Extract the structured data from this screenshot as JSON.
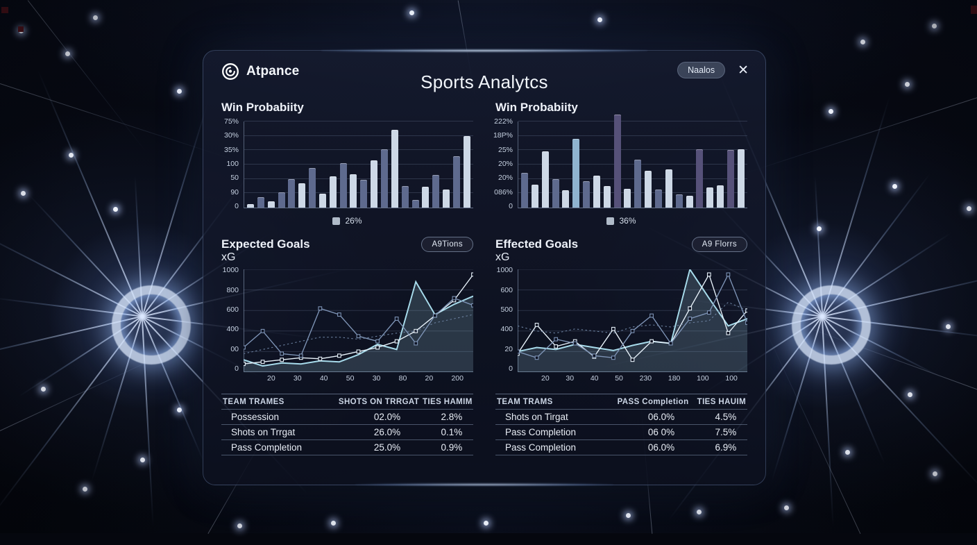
{
  "app": {
    "brand": "Atpance",
    "title": "Sports Analytcs",
    "header_button": "Naalos",
    "close_icon": "✕"
  },
  "left": {
    "win_title": "Win Probabiity",
    "legend": "26%",
    "xg_title": "Expected Goals",
    "xg_subtitle": "xG",
    "xg_button": "A9Tions",
    "table": {
      "headers": [
        "TEAM TRAMES",
        "SHOTS ON TRRGAT",
        "TIES HAMIM"
      ],
      "rows": [
        [
          "Possession",
          "02.0%",
          "2.8%"
        ],
        [
          "Shots on Trrgat",
          "26.0%",
          "0.1%"
        ],
        [
          "Pass Completion",
          "25.0%",
          "0.9%"
        ]
      ]
    }
  },
  "right": {
    "win_title": "Win Probabiity",
    "legend": "36%",
    "xg_title": "Effected Goals",
    "xg_subtitle": "xG",
    "xg_button": "A9 Florrs",
    "table": {
      "headers": [
        "TEAM TRAMS",
        "PASS Completion",
        "TIES HAUIM"
      ],
      "rows": [
        [
          "Shots on Tirgat",
          "06.0%",
          "4.5%"
        ],
        [
          "Pass Completion",
          "06 0%",
          "7.5%"
        ],
        [
          "Pass Completion",
          "06.0%",
          "6.9%"
        ]
      ]
    }
  },
  "chart_data": [
    {
      "id": "win-probability-left",
      "type": "bar",
      "title": "Win Probabiity",
      "y_tick_labels": [
        "75%",
        "30%",
        "35%",
        "100",
        "50",
        "90",
        "0"
      ],
      "values": [
        4,
        12,
        7,
        18,
        33,
        28,
        46,
        16,
        36,
        52,
        39,
        32,
        55,
        68,
        90,
        25,
        9,
        24,
        38,
        21,
        60,
        83
      ],
      "bar_colors": [
        "light",
        "slate",
        "light",
        "slate",
        "slate",
        "light",
        "slate",
        "light",
        "light",
        "slate",
        "light",
        "slate",
        "light",
        "slate",
        "light",
        "slate",
        "slate",
        "light",
        "slate",
        "light",
        "slate",
        "light"
      ],
      "legend": "26%",
      "ylim": [
        0,
        100
      ],
      "grid": true
    },
    {
      "id": "win-probability-right",
      "type": "bar",
      "title": "Win Probabiity",
      "y_tick_labels": [
        "222%",
        "18P%",
        "25%",
        "20%",
        "20%",
        "086%",
        "0"
      ],
      "values": [
        40,
        27,
        65,
        33,
        20,
        80,
        31,
        37,
        25,
        108,
        22,
        56,
        43,
        21,
        44,
        15,
        14,
        68,
        23,
        26,
        67,
        68
      ],
      "bar_colors": [
        "slate",
        "light",
        "light",
        "slate",
        "light",
        "steel",
        "slate",
        "light",
        "light",
        "purple",
        "light",
        "slate",
        "light",
        "slate",
        "light",
        "slate",
        "light",
        "purple",
        "light",
        "light",
        "purple",
        "light"
      ],
      "legend": "36%",
      "ylim": [
        0,
        100
      ],
      "grid": true
    },
    {
      "id": "expected-goals-left",
      "type": "line",
      "title": "Expected Goals xG",
      "y_tick_labels": [
        "1000",
        "800",
        "600",
        "400",
        "00",
        "0"
      ],
      "x_tick_labels": [
        "20",
        "30",
        "40",
        "50",
        "30",
        "80",
        "20",
        "200"
      ],
      "ylim": [
        0,
        1000
      ],
      "grid": true,
      "series": [
        {
          "name": "xg-area",
          "color": "cyan",
          "fill": true,
          "values": [
            120,
            60,
            90,
            80,
            110,
            100,
            170,
            270,
            220,
            880,
            560,
            660,
            740
          ]
        },
        {
          "name": "xg-trend",
          "color": "white",
          "markers": true,
          "values": [
            80,
            100,
            120,
            140,
            130,
            160,
            200,
            240,
            300,
            400,
            550,
            700,
            950
          ]
        },
        {
          "name": "xg-alt",
          "color": "slate",
          "markers": true,
          "values": [
            240,
            400,
            180,
            160,
            620,
            560,
            350,
            300,
            520,
            280,
            550,
            720,
            650
          ]
        },
        {
          "name": "xg-baseline",
          "color": "dotted",
          "dashed": true,
          "values": [
            180,
            220,
            260,
            300,
            340,
            340,
            320,
            350,
            380,
            400,
            480,
            520,
            560
          ]
        }
      ]
    },
    {
      "id": "effected-goals-right",
      "type": "line",
      "title": "Effected Goals xG",
      "y_tick_labels": [
        "1000",
        "600",
        "500",
        "400",
        "20",
        "0"
      ],
      "x_tick_labels": [
        "20",
        "30",
        "40",
        "50",
        "230",
        "180",
        "100",
        "100"
      ],
      "ylim": [
        0,
        1000
      ],
      "grid": true,
      "series": [
        {
          "name": "xg-area",
          "color": "cyan",
          "fill": true,
          "values": [
            200,
            240,
            220,
            270,
            240,
            210,
            260,
            300,
            280,
            1000,
            720,
            450,
            520
          ]
        },
        {
          "name": "xg-spikes",
          "color": "white",
          "markers": true,
          "values": [
            180,
            460,
            250,
            300,
            150,
            420,
            120,
            300,
            280,
            620,
            950,
            380,
            600
          ]
        },
        {
          "name": "xg-alt",
          "color": "slate",
          "markers": true,
          "values": [
            200,
            140,
            320,
            280,
            160,
            140,
            400,
            550,
            280,
            520,
            580,
            950,
            480
          ]
        },
        {
          "name": "xg-baseline",
          "color": "dotted",
          "dashed": true,
          "values": [
            450,
            400,
            380,
            420,
            400,
            380,
            440,
            460,
            440,
            480,
            500,
            680,
            600
          ]
        }
      ]
    }
  ],
  "colors": {
    "bar_light": "#cdd8e6",
    "bar_slate": "#5e6a8e",
    "bar_steel": "#8fb3cf",
    "bar_purple": "#565179",
    "line_cyan": "#a8dcec",
    "line_white": "#e9f3fb",
    "line_slate": "#7e94b6",
    "line_dotted": "#6b809f",
    "grid": "rgba(150,170,200,0.22)"
  }
}
